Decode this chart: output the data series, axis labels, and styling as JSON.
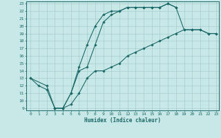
{
  "title": "",
  "xlabel": "Humidex (Indice chaleur)",
  "bg_color": "#c8e8e8",
  "grid_color": "#a8cece",
  "line_color": "#1a6868",
  "xlim": [
    -0.5,
    23.3
  ],
  "ylim": [
    8.7,
    23.3
  ],
  "xticks": [
    0,
    1,
    2,
    3,
    4,
    5,
    6,
    7,
    8,
    9,
    10,
    11,
    12,
    13,
    14,
    15,
    16,
    17,
    18,
    19,
    20,
    21,
    22,
    23
  ],
  "yticks": [
    9,
    10,
    11,
    12,
    13,
    14,
    15,
    16,
    17,
    18,
    19,
    20,
    21,
    22,
    23
  ],
  "line1_x": [
    0,
    1,
    2,
    3,
    4,
    5,
    6,
    7,
    8,
    9,
    10,
    11,
    12,
    13,
    14,
    15,
    16,
    17,
    18
  ],
  "line1_y": [
    13,
    12,
    11.5,
    9,
    9,
    11,
    14.5,
    17.5,
    20,
    21.5,
    22,
    22,
    22.5,
    22.5,
    22.5,
    22.5,
    22.5,
    23,
    22.5
  ],
  "line2_x": [
    0,
    2,
    3,
    4,
    5,
    6,
    7,
    8,
    9,
    10,
    11,
    12,
    13,
    14,
    15,
    16,
    17,
    18,
    19,
    20,
    21,
    22,
    23
  ],
  "line2_y": [
    13,
    12,
    9,
    9,
    11,
    14,
    14.5,
    17.5,
    20.5,
    21.5,
    22,
    22.5,
    22.5,
    22.5,
    22.5,
    22.5,
    23,
    22.5,
    19.5,
    19.5,
    19.5,
    19,
    19
  ],
  "line3_x": [
    3,
    4,
    5,
    6,
    7,
    8,
    9,
    10,
    11,
    12,
    13,
    14,
    15,
    16,
    17,
    18,
    19,
    20,
    21,
    22,
    23
  ],
  "line3_y": [
    9,
    9,
    9.5,
    11,
    13,
    14,
    14,
    14.5,
    15,
    16,
    16.5,
    17,
    17.5,
    18,
    18.5,
    19,
    19.5,
    19.5,
    19.5,
    19,
    19
  ],
  "xlabel_fontsize": 5.5,
  "tick_fontsize": 4.5,
  "linewidth": 0.8,
  "markersize": 1.8
}
